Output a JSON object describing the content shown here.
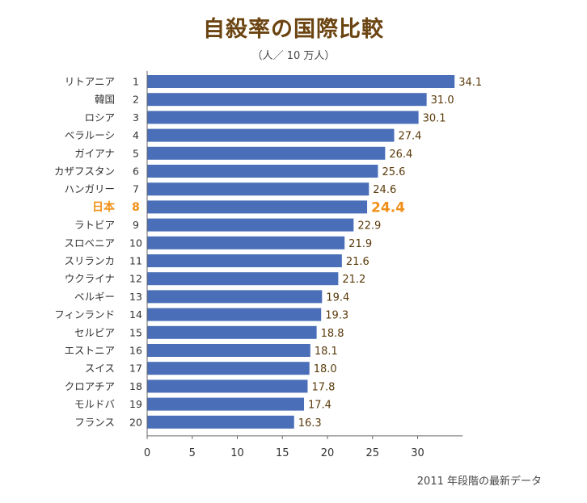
{
  "title": "自殺率の国際比較",
  "subtitle": "（人／ 10 万人）",
  "footnote": "2011 年段階の最新データ",
  "colors": {
    "bar": "#4a6fb8",
    "highlight": "#f0901a",
    "title": "#6b4411"
  },
  "chart_data": {
    "type": "bar",
    "orientation": "horizontal",
    "title": "自殺率の国際比較",
    "unit": "（人／ 10 万人）",
    "categories": [
      "リトアニア",
      "韓国",
      "ロシア",
      "ベラルーシ",
      "ガイアナ",
      "カザフスタン",
      "ハンガリー",
      "日本",
      "ラトビア",
      "スロベニア",
      "スリランカ",
      "ウクライナ",
      "ベルギー",
      "フィンランド",
      "セルビア",
      "エストニア",
      "スイス",
      "クロアチア",
      "モルドバ",
      "フランス"
    ],
    "ranks": [
      "1",
      "2",
      "3",
      "4",
      "5",
      "6",
      "7",
      "8",
      "9",
      "10",
      "11",
      "12",
      "13",
      "14",
      "15",
      "16",
      "17",
      "18",
      "19",
      "20"
    ],
    "values": [
      34.1,
      31.0,
      30.1,
      27.4,
      26.4,
      25.6,
      24.6,
      24.4,
      22.9,
      21.9,
      21.6,
      21.2,
      19.4,
      19.3,
      18.8,
      18.1,
      18.0,
      17.8,
      17.4,
      16.3
    ],
    "value_labels": [
      "34.1",
      "31.0",
      "30.1",
      "27.4",
      "26.4",
      "25.6",
      "24.6",
      "24.4",
      "22.9",
      "21.9",
      "21.6",
      "21.2",
      "19.4",
      "19.3",
      "18.8",
      "18.1",
      "18.0",
      "17.8",
      "17.4",
      "16.3"
    ],
    "highlight": "日本",
    "xlim": [
      0,
      35
    ],
    "xticks": [
      "0",
      "5",
      "10",
      "15",
      "20",
      "25",
      "30"
    ],
    "grid": false
  }
}
